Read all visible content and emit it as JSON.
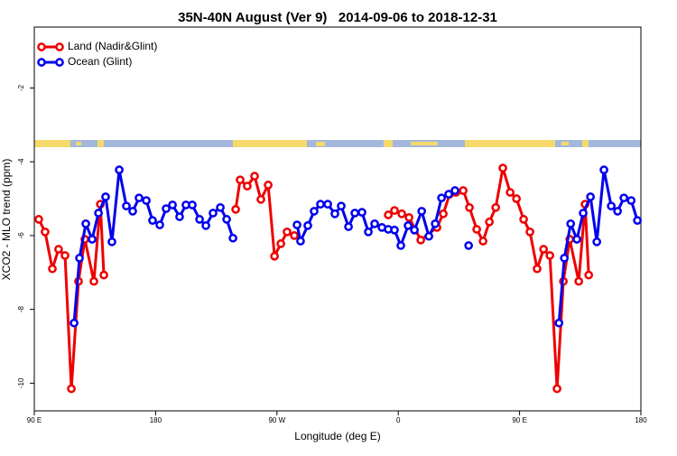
{
  "chart_data": {
    "type": "line",
    "title": "35N-40N August (Ver 9)   2014-09-06 to 2018-12-31",
    "x_label": "Longitude (deg E)",
    "y_label": "XCO2 - MLO trend (ppm)",
    "xlim": [
      90,
      540
    ],
    "xticks": [
      {
        "value": 90,
        "label": "90 E"
      },
      {
        "value": 180,
        "label": "180"
      },
      {
        "value": 270,
        "label": "90 W"
      },
      {
        "value": 360,
        "label": "0"
      },
      {
        "value": 450,
        "label": "90 E"
      },
      {
        "value": 540,
        "label": "180"
      }
    ],
    "ylim": [
      -10.75,
      -0.35
    ],
    "yticks": [
      -10,
      -8,
      -6,
      -4,
      -2
    ],
    "legend": "top-left",
    "series": [
      {
        "name": "Land (Nadir&Glint)",
        "color": "#ee0000",
        "x": [
          93.3,
          98,
          103.4,
          108,
          112.8,
          117.5,
          122.8,
          127.5,
          134.2,
          139,
          141.6,
          null,
          239.4,
          242.7,
          248,
          253.4,
          258.1,
          263.5,
          268.2,
          272.9,
          277.5,
          282.9,
          null,
          352.6,
          357.2,
          362.6,
          368,
          376.7,
          388.7,
          393.4,
          398.1,
          402.8,
          408.2,
          412.8,
          418.2,
          422.9,
          427.6,
          432.3,
          437.6,
          443,
          447.7,
          453,
          457.7,
          463,
          467.8,
          472.5,
          477.8,
          482.5,
          487.2,
          493.9,
          498.6,
          501.3
        ],
        "values": [
          -5.56,
          -5.9,
          -6.9,
          -6.37,
          -6.54,
          -10.15,
          -7.24,
          -6.1,
          -7.24,
          -5.15,
          -7.07,
          null,
          -5.29,
          -4.49,
          -4.66,
          -4.39,
          -5.02,
          -4.63,
          -6.56,
          -6.22,
          -5.9,
          -6.0,
          null,
          -5.44,
          -5.32,
          -5.41,
          -5.51,
          -6.12,
          -5.78,
          -5.41,
          -4.88,
          -4.83,
          -4.78,
          -5.24,
          -5.83,
          -6.15,
          -5.63,
          -5.24,
          -4.17,
          -4.83,
          -5.0,
          -5.56,
          -5.9,
          -6.9,
          -6.37,
          -6.54,
          -10.15,
          -7.24,
          -6.1,
          -7.24,
          -5.15,
          -7.07
        ]
      },
      {
        "name": "Ocean (Glint)",
        "color": "#0000ee",
        "x": [
          119.5,
          123.5,
          128.2,
          132.9,
          137.6,
          142.9,
          147.6,
          153,
          158.3,
          163,
          167.7,
          173.1,
          177.7,
          183.1,
          187.8,
          192.5,
          197.8,
          202.5,
          207.2,
          212.6,
          217.3,
          222.6,
          228,
          232.7,
          237.4,
          null,
          284.9,
          287.5,
          292.9,
          297.6,
          302.3,
          307.7,
          313,
          317.7,
          323.1,
          327.8,
          333.1,
          337.8,
          342.5,
          347.9,
          352.6,
          357.2,
          361.9,
          367.3,
          372,
          377.4,
          382.7,
          387.4,
          392.1,
          397.4,
          402.1,
          null,
          412.2,
          null,
          479.2,
          483.2,
          487.9,
          492.5,
          497.2,
          502.6,
          507.3,
          512.6,
          518,
          522.7,
          527.4,
          532.8,
          537.4
        ],
        "values": [
          -8.37,
          -6.61,
          -5.68,
          -6.1,
          -5.39,
          -4.95,
          -6.17,
          -4.22,
          -5.2,
          -5.34,
          -4.98,
          -5.05,
          -5.59,
          -5.71,
          -5.27,
          -5.17,
          -5.49,
          -5.17,
          -5.17,
          -5.56,
          -5.73,
          -5.39,
          -5.24,
          -5.56,
          -6.07,
          null,
          -5.71,
          -6.15,
          -5.73,
          -5.34,
          -5.15,
          -5.15,
          -5.41,
          -5.2,
          -5.76,
          -5.39,
          -5.37,
          -5.9,
          -5.68,
          -5.78,
          -5.83,
          -5.85,
          -6.27,
          -5.73,
          -5.85,
          -5.34,
          -6.02,
          -5.68,
          -4.98,
          -4.88,
          -4.78,
          null,
          -6.27,
          null,
          -8.37,
          -6.61,
          -5.68,
          -6.1,
          -5.39,
          -4.95,
          -6.17,
          -4.22,
          -5.2,
          -5.34,
          -4.98,
          -5.05,
          -5.59
        ]
      }
    ]
  }
}
